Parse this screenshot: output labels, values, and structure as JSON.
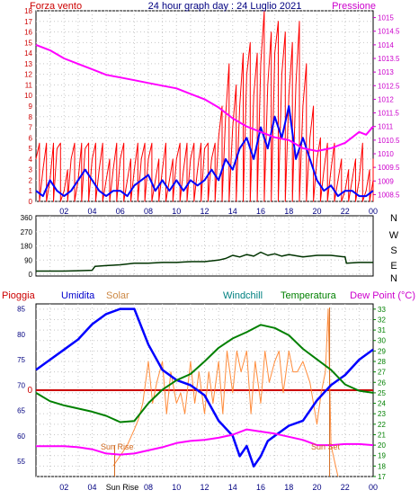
{
  "header": {
    "left_label": "Forza vento",
    "title": "24 hour graph day : 24 Luglio 2021",
    "right_label": "Pressione"
  },
  "colors": {
    "wind_speed": "#ff0000",
    "wind_gust": "#0000ff",
    "pressure": "#ff00ff",
    "wind_dir": "#003300",
    "rain": "#cc0000",
    "humidity": "#0000ff",
    "solar": "#ff8c3c",
    "windchill": "#008080",
    "temperature": "#008000",
    "dewpoint": "#ff00ff",
    "sun_marker": "#d2691e",
    "grid": "#c8c8c8",
    "frame": "#000000"
  },
  "bottom_header": {
    "rain": "Pioggia",
    "humidity": "Umidita",
    "solar": "Solar",
    "windchill": "Windchill",
    "temperature": "Temperatura",
    "dewpoint": "Dew Point (°C)"
  },
  "chart_data": [
    {
      "type": "line",
      "name_id": "wind-pressure",
      "x_ticks": [
        "02",
        "04",
        "06",
        "08",
        "10",
        "12",
        "14",
        "16",
        "18",
        "20",
        "22",
        "00"
      ],
      "xlim": [
        0,
        24
      ],
      "y_left_ticks": [
        "0",
        "1",
        "2",
        "3",
        "4",
        "5",
        "6",
        "7",
        "8",
        "9",
        "10",
        "11",
        "12",
        "13",
        "14",
        "15",
        "16",
        "17",
        "18"
      ],
      "ylim_left": [
        0,
        18
      ],
      "y_right_ticks": [
        "1008.5",
        "1009",
        "1009.5",
        "1010",
        "1010.5",
        "1011",
        "1011.5",
        "1012",
        "1012.5",
        "1013",
        "1013.5",
        "1014",
        "1014.5",
        "1015"
      ],
      "ylim_right": [
        1008.25,
        1015.25
      ],
      "series": [
        {
          "key": "wind_speed",
          "x": [
            0,
            0.5,
            1,
            1.5,
            2,
            2.5,
            3,
            3.5,
            4,
            4.5,
            5,
            5.5,
            6,
            6.5,
            7,
            7.5,
            8,
            8.5,
            9,
            9.5,
            10,
            10.5,
            11,
            11.5,
            12,
            12.5,
            13,
            13.5,
            14,
            14.5,
            15,
            15.5,
            16,
            16.5,
            17,
            17.5,
            18,
            18.5,
            19,
            19.5,
            20,
            20.5,
            21,
            21.5,
            22,
            22.5,
            23,
            23.5,
            24
          ],
          "values": [
            4,
            3,
            2,
            5,
            1,
            4,
            2,
            5,
            4,
            3,
            2,
            3,
            4,
            2,
            3,
            4,
            4,
            2,
            3,
            2,
            4,
            3,
            4,
            3,
            5,
            4,
            6,
            8,
            7,
            9,
            12,
            10,
            13,
            11,
            14,
            12,
            10,
            11,
            9,
            6,
            4,
            3,
            3,
            2,
            1,
            2,
            2,
            1,
            2
          ],
          "peaks": [
            5.5,
            5.5,
            5.5,
            5.5,
            3,
            5.5,
            5.5,
            5.5,
            5.5,
            5.5,
            4,
            5.5,
            5.5,
            4,
            5.5,
            5.5,
            5.5,
            4,
            5.5,
            4,
            5.5,
            5.5,
            5.5,
            5.5,
            5.5,
            5.5,
            9,
            13,
            11,
            14,
            15,
            14,
            18,
            16,
            17,
            16,
            15,
            17,
            13,
            9,
            6,
            5.5,
            5.5,
            4,
            3,
            4,
            5.5,
            3,
            4
          ]
        },
        {
          "key": "wind_gust",
          "x": [
            0,
            0.5,
            1,
            1.5,
            2,
            2.5,
            3,
            3.5,
            4,
            4.5,
            5,
            5.5,
            6,
            6.5,
            7,
            7.5,
            8,
            8.5,
            9,
            9.5,
            10,
            10.5,
            11,
            11.5,
            12,
            12.5,
            13,
            13.5,
            14,
            14.5,
            15,
            15.5,
            16,
            16.5,
            17,
            17.5,
            18,
            18.5,
            19,
            19.5,
            20,
            20.5,
            21,
            21.5,
            22,
            22.5,
            23,
            23.5,
            24
          ],
          "values": [
            1,
            0.5,
            2,
            1,
            0.5,
            1,
            2,
            3,
            2,
            1,
            0.5,
            1,
            1,
            0.5,
            1.5,
            2,
            2.5,
            1,
            2,
            1,
            2,
            1,
            2,
            1.5,
            2,
            3,
            2,
            4,
            3,
            5,
            6,
            4,
            7,
            5,
            8,
            6,
            9,
            4,
            6,
            4,
            2,
            1,
            1.5,
            0.5,
            1,
            1,
            0.5,
            0.5,
            1
          ]
        },
        {
          "key": "pressure",
          "x": [
            0,
            1,
            2,
            3,
            4,
            5,
            6,
            7,
            8,
            9,
            10,
            11,
            12,
            13,
            14,
            15,
            16,
            17,
            18,
            19,
            20,
            21,
            22,
            23,
            23.5,
            24
          ],
          "values": [
            1014,
            1013.8,
            1013.5,
            1013.3,
            1013.1,
            1012.9,
            1012.8,
            1012.7,
            1012.6,
            1012.5,
            1012.4,
            1012.2,
            1012,
            1011.7,
            1011.3,
            1011,
            1010.8,
            1010.6,
            1010.5,
            1010.2,
            1010.1,
            1010.2,
            1010.4,
            1010.8,
            1010.7,
            1011
          ]
        }
      ]
    },
    {
      "type": "line",
      "name_id": "wind-direction",
      "y_left_ticks": [
        "0",
        "90",
        "180",
        "270",
        "360"
      ],
      "ylim": [
        0,
        360
      ],
      "direction_labels": [
        "N",
        "W",
        "S",
        "E",
        "N"
      ],
      "series": [
        {
          "key": "wind_dir",
          "x": [
            0,
            1,
            2,
            3,
            4,
            4.2,
            5,
            6,
            7,
            8,
            9,
            10,
            11,
            12,
            13,
            13.5,
            14,
            14.5,
            15,
            15.5,
            16,
            16.5,
            17,
            17.5,
            18,
            19,
            20,
            21,
            22,
            22.1,
            23,
            24
          ],
          "values": [
            20,
            20,
            20,
            22,
            25,
            50,
            55,
            60,
            70,
            70,
            75,
            75,
            80,
            80,
            90,
            100,
            120,
            110,
            125,
            115,
            140,
            120,
            130,
            115,
            125,
            110,
            120,
            120,
            110,
            70,
            75,
            75
          ]
        }
      ]
    },
    {
      "type": "line",
      "name_id": "humidity-temperature",
      "y_left_ticks": [
        "55",
        "60",
        "65",
        "70",
        "75",
        "80",
        "85"
      ],
      "ylim_left": [
        52,
        86
      ],
      "y_right_ticks": [
        "17",
        "18",
        "19",
        "20",
        "21",
        "22",
        "23",
        "24",
        "25",
        "26",
        "27",
        "28",
        "29",
        "30",
        "31",
        "32",
        "33"
      ],
      "ylim_right": [
        17,
        33.5
      ],
      "rain_zero_label": "0",
      "sun_rise_label": "Sun Rise",
      "sun_set_label": "Sun Set",
      "sun_rise_x": 5.6,
      "sun_set_x": 20.9,
      "series": [
        {
          "key": "humidity",
          "x": [
            0,
            1,
            2,
            3,
            4,
            5,
            6,
            7,
            8,
            9,
            10,
            11,
            12,
            13,
            14,
            14.5,
            15,
            15.5,
            16,
            16.5,
            17,
            18,
            19,
            20,
            21,
            22,
            23,
            24
          ],
          "values": [
            73,
            75,
            77,
            79,
            82,
            84,
            85,
            85,
            78,
            73,
            71,
            70,
            68,
            63,
            60,
            56,
            58,
            54,
            56,
            59,
            60,
            62,
            63,
            67,
            70,
            72,
            75,
            77
          ]
        },
        {
          "key": "temperature",
          "x": [
            0,
            1,
            2,
            3,
            4,
            5,
            6,
            7,
            8,
            9,
            10,
            11,
            12,
            13,
            14,
            15,
            16,
            17,
            18,
            19,
            20,
            21,
            22,
            23,
            24
          ],
          "values": [
            25,
            24.2,
            23.8,
            23.5,
            23.2,
            22.8,
            22.2,
            22.3,
            24,
            25.3,
            26.2,
            26.8,
            28,
            29.3,
            30.2,
            30.8,
            31.5,
            31.2,
            30.5,
            29.2,
            28.2,
            27.2,
            25.8,
            25.2,
            25
          ]
        },
        {
          "key": "dewpoint",
          "x": [
            0,
            1,
            2,
            3,
            4,
            5,
            6,
            7,
            8,
            9,
            10,
            11,
            12,
            13,
            14,
            15,
            16,
            17,
            18,
            19,
            20,
            21,
            22,
            23,
            24
          ],
          "values": [
            19.9,
            19.9,
            19.9,
            19.8,
            19.6,
            19.2,
            19.1,
            19.2,
            19.5,
            19.8,
            20.2,
            20.4,
            20.5,
            20.7,
            21,
            21.5,
            21.3,
            21.1,
            20.8,
            20.5,
            20,
            20,
            20.1,
            20.1,
            20
          ]
        },
        {
          "key": "solar",
          "x": [
            5.5,
            6,
            6.5,
            7,
            7.3,
            7.6,
            8,
            8.3,
            8.6,
            9,
            9.3,
            9.6,
            10,
            10.3,
            10.6,
            11,
            11.3,
            11.6,
            12,
            12.3,
            12.6,
            13,
            13.3,
            13.6,
            14,
            14.3,
            14.6,
            15,
            15.3,
            15.6,
            16,
            16.3,
            16.6,
            17,
            17.3,
            17.6,
            18,
            18.3,
            18.6,
            19,
            19.5,
            20,
            20.3,
            20.6,
            20.8,
            21,
            21.5
          ],
          "values": [
            18,
            19,
            20,
            21.5,
            22.5,
            24,
            28,
            24,
            26,
            28,
            23,
            27,
            24,
            25,
            23,
            28,
            24,
            27,
            23,
            27,
            24,
            28,
            23,
            29,
            25,
            29,
            27,
            29,
            23,
            28,
            24,
            29,
            26,
            28,
            29,
            25,
            29,
            27,
            27,
            28,
            26,
            22,
            25,
            27,
            33,
            20,
            17
          ]
        }
      ]
    }
  ]
}
